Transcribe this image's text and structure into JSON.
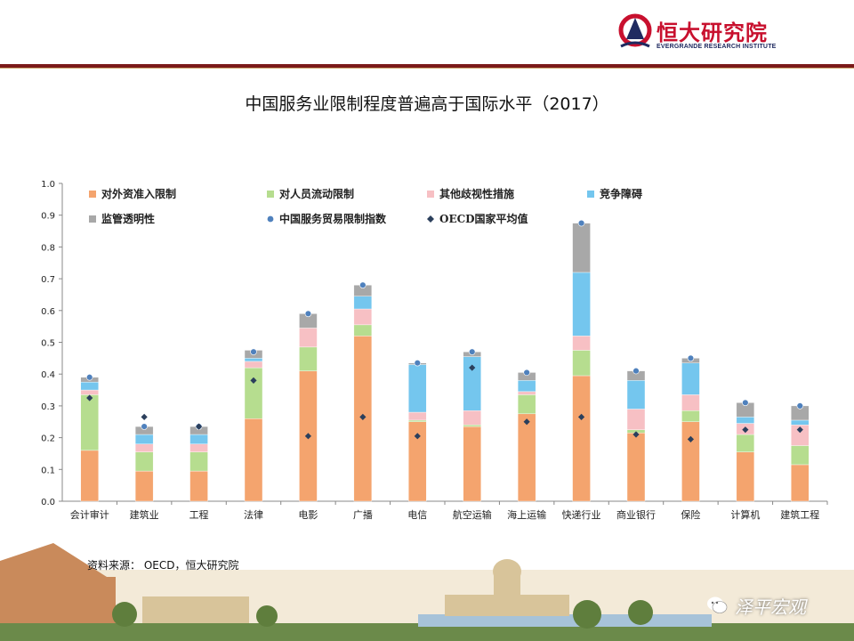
{
  "header": {
    "logo_cn": "恒大研究院",
    "logo_en": "EVERGRANDE RESEARCH INSTITUTE"
  },
  "title": "中国服务业限制程度普遍高于国际水平（2017）",
  "source": "资料来源： OECD，恒大研究院",
  "watermark": "泽平宏观",
  "colors": {
    "accent": "#7b1a1a",
    "s1": "#f4a46e",
    "s2": "#b6dd8f",
    "s3": "#f7c0c4",
    "s4": "#74c6ee",
    "s5": "#a8a8a8",
    "china_dot": "#4f81bd",
    "oecd_dot": "#2b3f5c"
  },
  "chart_data": {
    "type": "bar",
    "stacked": true,
    "categories": [
      "会计审计",
      "建筑业",
      "工程",
      "法律",
      "电影",
      "广播",
      "电信",
      "航空运输",
      "海上运输",
      "快递行业",
      "商业银行",
      "保险",
      "计算机",
      "建筑工程"
    ],
    "series": [
      {
        "name": "对外资准入限制",
        "type": "bar",
        "values": [
          0.16,
          0.095,
          0.095,
          0.26,
          0.41,
          0.52,
          0.25,
          0.235,
          0.275,
          0.395,
          0.215,
          0.25,
          0.155,
          0.115
        ]
      },
      {
        "name": "对人员流动限制",
        "type": "bar",
        "values": [
          0.175,
          0.06,
          0.06,
          0.16,
          0.075,
          0.035,
          0.005,
          0.005,
          0.06,
          0.08,
          0.01,
          0.035,
          0.055,
          0.06
        ]
      },
      {
        "name": "其他歧视性措施",
        "type": "bar",
        "values": [
          0.015,
          0.025,
          0.025,
          0.02,
          0.06,
          0.05,
          0.025,
          0.045,
          0.01,
          0.045,
          0.065,
          0.05,
          0.035,
          0.065
        ]
      },
      {
        "name": "竞争障碍",
        "type": "bar",
        "values": [
          0.025,
          0.03,
          0.03,
          0.01,
          0.0,
          0.04,
          0.15,
          0.17,
          0.035,
          0.2,
          0.09,
          0.1,
          0.02,
          0.015
        ]
      },
      {
        "name": "监管透明性",
        "type": "bar",
        "values": [
          0.015,
          0.025,
          0.025,
          0.025,
          0.045,
          0.035,
          0.005,
          0.015,
          0.025,
          0.155,
          0.03,
          0.015,
          0.045,
          0.045
        ]
      },
      {
        "name": "中国服务贸易限制指数",
        "type": "marker",
        "values": [
          0.39,
          0.235,
          0.235,
          0.47,
          0.59,
          0.68,
          0.435,
          0.47,
          0.405,
          0.875,
          0.41,
          0.45,
          0.31,
          0.3
        ]
      },
      {
        "name": "OECD国家平均值",
        "type": "marker",
        "values": [
          0.325,
          0.265,
          0.235,
          0.38,
          0.205,
          0.265,
          0.205,
          0.42,
          0.25,
          0.265,
          0.21,
          0.195,
          0.225,
          0.225
        ]
      }
    ],
    "ylim": [
      0,
      1.0
    ],
    "yticks": [
      "0.0",
      "0.1",
      "0.2",
      "0.3",
      "0.4",
      "0.5",
      "0.6",
      "0.7",
      "0.8",
      "0.9",
      "1.0"
    ],
    "legend_position": "top-left inside plot",
    "grid": false
  }
}
